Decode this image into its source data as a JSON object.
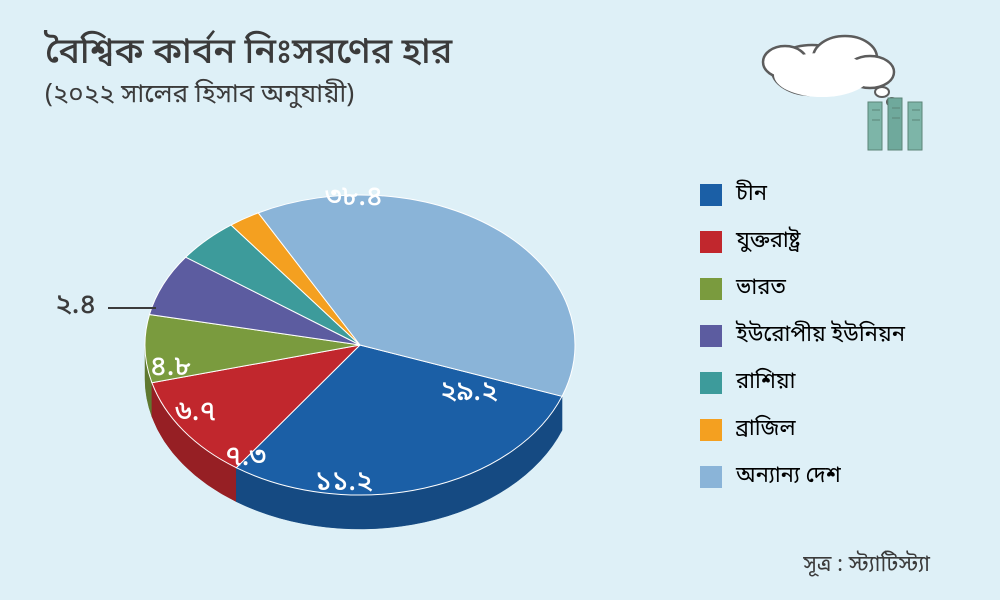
{
  "title": "বৈশ্বিক কার্বন নিঃসরণের হার",
  "subtitle": "(২০২২ সালের হিসাব অনুযায়ী)",
  "source": "সূত্র : স্ট্যাটিস্ট্যা",
  "background_color": "#def0f7",
  "text_color": "#3b3b3b",
  "chart": {
    "type": "pie-3d",
    "slices": [
      {
        "label": "চীন",
        "value": 29.2,
        "value_bn": "২৯.২",
        "color": "#1b5fa6",
        "side_color": "#154a82"
      },
      {
        "label": "যুক্তরাষ্ট্র",
        "value": 11.2,
        "value_bn": "১১.২",
        "color": "#c1272d",
        "side_color": "#961f24"
      },
      {
        "label": "ভারত",
        "value": 7.3,
        "value_bn": "৭.৩",
        "color": "#7a9b3e",
        "side_color": "#5f7930"
      },
      {
        "label": "ইউরোপীয় ইউনিয়ন",
        "value": 6.7,
        "value_bn": "৬.৭",
        "color": "#5c5ca0",
        "side_color": "#47477c"
      },
      {
        "label": "রাশিয়া",
        "value": 4.8,
        "value_bn": "৪.৮",
        "color": "#3d9b9b",
        "side_color": "#2f7878"
      },
      {
        "label": "ব্রাজিল",
        "value": 2.4,
        "value_bn": "২.৪",
        "color": "#f4a020",
        "side_color": "#c17f19"
      },
      {
        "label": "অন্যান্য দেশ",
        "value": 38.4,
        "value_bn": "৩৮.৪",
        "color": "#8ab4d8",
        "side_color": "#6b8ca8"
      }
    ],
    "label_color_light": "#ffffff",
    "label_color_dark": "#3b3b3b",
    "title_fontsize": 36,
    "subtitle_fontsize": 26,
    "legend_fontsize": 22,
    "slice_label_fontsize": 28
  },
  "icon": {
    "cloud_fill": "#ffffff",
    "cloud_stroke": "#5c5c5c",
    "stack_colors": [
      "#7db5a8",
      "#6fa99c",
      "#7db5a8"
    ]
  }
}
